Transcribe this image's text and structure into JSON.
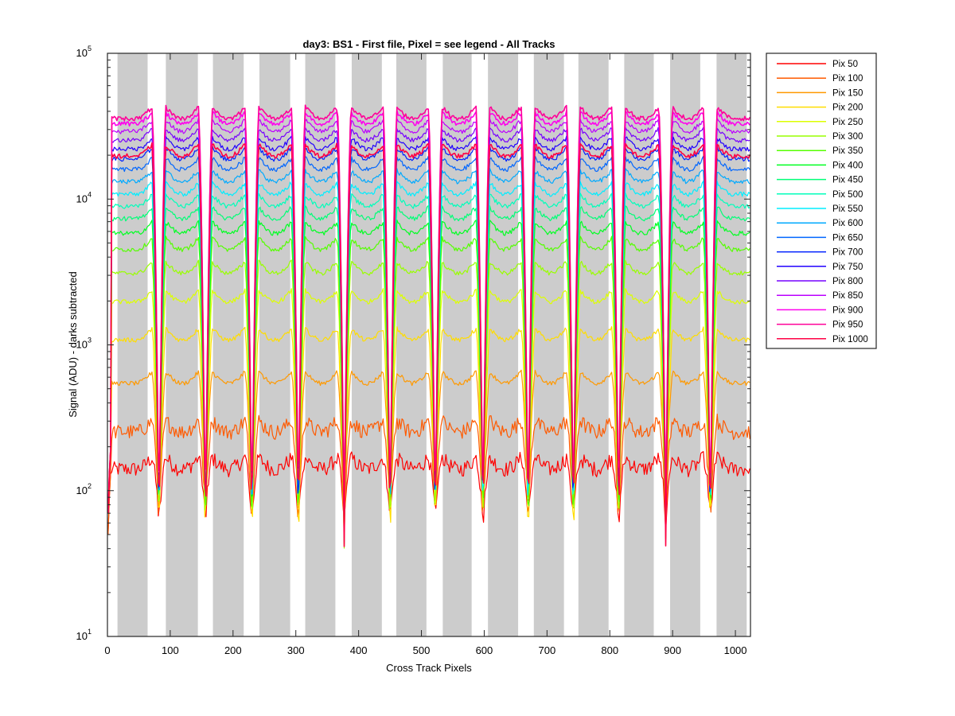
{
  "chart_data": {
    "type": "line",
    "title": "day3: BS1 - First file, Pixel = see legend - All Tracks",
    "xlabel": "Cross Track Pixels",
    "ylabel": "Signal (ADU) - darks subtracted",
    "xlim": [
      0,
      1024
    ],
    "ylim": [
      10,
      100000
    ],
    "yscale": "log",
    "grid": false,
    "legend_position": "outside-top-right",
    "x_ticks": [
      0,
      100,
      200,
      300,
      400,
      500,
      600,
      700,
      800,
      900,
      1000
    ],
    "y_ticks": [
      {
        "value": 10,
        "base": "10",
        "exp": "1"
      },
      {
        "value": 100,
        "base": "10",
        "exp": "2"
      },
      {
        "value": 1000,
        "base": "10",
        "exp": "3"
      },
      {
        "value": 10000,
        "base": "10",
        "exp": "4"
      },
      {
        "value": 100000,
        "base": "10",
        "exp": "5"
      }
    ],
    "shaded_bands": [
      [
        16,
        64
      ],
      [
        93,
        144
      ],
      [
        168,
        217
      ],
      [
        242,
        291
      ],
      [
        315,
        363
      ],
      [
        389,
        437
      ],
      [
        460,
        508
      ],
      [
        534,
        580
      ],
      [
        606,
        654
      ],
      [
        679,
        727
      ],
      [
        750,
        798
      ],
      [
        823,
        870
      ],
      [
        896,
        944
      ],
      [
        970,
        1018
      ]
    ],
    "dip_centers": [
      82,
      156,
      230,
      304,
      377,
      450,
      522,
      598,
      670,
      742,
      814,
      889,
      960
    ],
    "series": [
      {
        "name": "Pix 50",
        "color": "#ff0000",
        "level": 150
      },
      {
        "name": "Pix 100",
        "color": "#ff5a00",
        "level": 270
      },
      {
        "name": "Pix 150",
        "color": "#ff9900",
        "level": 580
      },
      {
        "name": "Pix 200",
        "color": "#ffdd00",
        "level": 1150
      },
      {
        "name": "Pix 250",
        "color": "#ddff00",
        "level": 2100
      },
      {
        "name": "Pix 300",
        "color": "#99ff00",
        "level": 3300
      },
      {
        "name": "Pix 350",
        "color": "#55ff00",
        "level": 4800
      },
      {
        "name": "Pix 400",
        "color": "#00ff22",
        "level": 6200
      },
      {
        "name": "Pix 450",
        "color": "#00ff77",
        "level": 7800
      },
      {
        "name": "Pix 500",
        "color": "#00ffbb",
        "level": 9500
      },
      {
        "name": "Pix 550",
        "color": "#00eeff",
        "level": 11500
      },
      {
        "name": "Pix 600",
        "color": "#00aaff",
        "level": 14000
      },
      {
        "name": "Pix 650",
        "color": "#0066ff",
        "level": 17000
      },
      {
        "name": "Pix 700",
        "color": "#0022ff",
        "level": 20000
      },
      {
        "name": "Pix 750",
        "color": "#2200ff",
        "level": 23500
      },
      {
        "name": "Pix 800",
        "color": "#7700ff",
        "level": 27000
      },
      {
        "name": "Pix 850",
        "color": "#bb00ff",
        "level": 31000
      },
      {
        "name": "Pix 900",
        "color": "#ff00ee",
        "level": 35000
      },
      {
        "name": "Pix 950",
        "color": "#ff0099",
        "level": 38000
      },
      {
        "name": "Pix 1000",
        "color": "#ff0044",
        "level": 21000
      }
    ]
  }
}
